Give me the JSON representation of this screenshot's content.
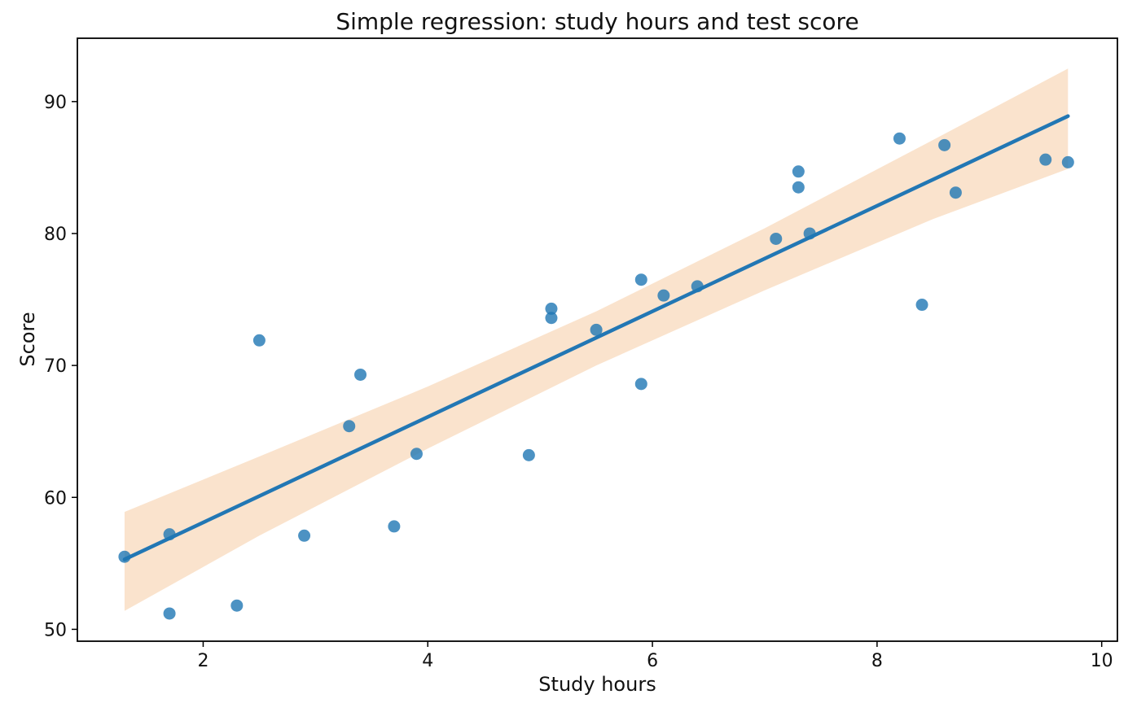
{
  "chart_data": {
    "type": "scatter",
    "title": "Simple regression: study hours and test score",
    "xlabel": "Study hours",
    "ylabel": "Score",
    "xlim": [
      0.88,
      10.14
    ],
    "ylim": [
      49.1,
      94.8
    ],
    "x_ticks": [
      2,
      4,
      6,
      8,
      10
    ],
    "y_ticks": [
      50,
      60,
      70,
      80,
      90
    ],
    "grid": false,
    "legend": "none",
    "marker_radius": 7.5,
    "scatter_alpha": 0.8,
    "points": [
      [
        1.3,
        55.5
      ],
      [
        1.7,
        51.2
      ],
      [
        1.7,
        57.2
      ],
      [
        2.3,
        51.8
      ],
      [
        2.5,
        71.9
      ],
      [
        2.9,
        57.1
      ],
      [
        3.3,
        65.4
      ],
      [
        3.4,
        69.3
      ],
      [
        3.7,
        57.8
      ],
      [
        3.9,
        63.3
      ],
      [
        4.9,
        63.2
      ],
      [
        5.1,
        74.3
      ],
      [
        5.1,
        73.6
      ],
      [
        5.5,
        72.7
      ],
      [
        5.9,
        76.5
      ],
      [
        5.9,
        68.6
      ],
      [
        6.1,
        75.3
      ],
      [
        6.4,
        76.0
      ],
      [
        7.1,
        79.6
      ],
      [
        7.3,
        84.7
      ],
      [
        7.3,
        83.5
      ],
      [
        7.4,
        80.0
      ],
      [
        8.2,
        87.2
      ],
      [
        8.4,
        74.6
      ],
      [
        8.6,
        86.7
      ],
      [
        8.7,
        83.1
      ],
      [
        9.5,
        85.6
      ],
      [
        9.7,
        85.4
      ]
    ],
    "regression_line": {
      "x1": 1.3,
      "y1": 55.3,
      "x2": 9.7,
      "y2": 88.9,
      "slope": 4.0,
      "intercept": 50.0
    },
    "ci_band": [
      {
        "x": 1.3,
        "lo": 51.4,
        "hi": 58.9
      },
      {
        "x": 2.5,
        "lo": 57.1,
        "hi": 63.1
      },
      {
        "x": 4.0,
        "lo": 63.7,
        "hi": 68.4
      },
      {
        "x": 5.5,
        "lo": 70.0,
        "hi": 74.1
      },
      {
        "x": 7.0,
        "lo": 75.7,
        "hi": 80.4
      },
      {
        "x": 8.5,
        "lo": 81.1,
        "hi": 87.1
      },
      {
        "x": 9.7,
        "lo": 84.9,
        "hi": 92.5
      }
    ],
    "colors": {
      "scatter": "#1f77b4",
      "line": "#2277b4",
      "band": "#fae3cd",
      "axis": "#000000",
      "text": "#111111",
      "background": "#ffffff"
    }
  }
}
